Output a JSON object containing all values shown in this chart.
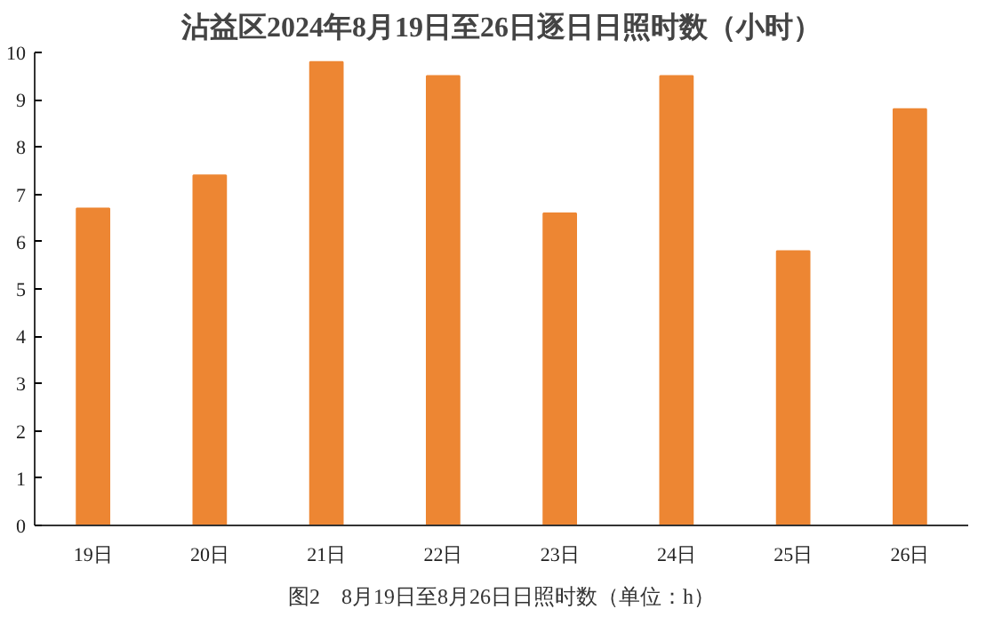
{
  "chart_data": {
    "type": "bar",
    "title": "沾益区2024年8月19日至26日逐日日照时数（小时）",
    "categories": [
      "19日",
      "20日",
      "21日",
      "22日",
      "23日",
      "24日",
      "25日",
      "26日"
    ],
    "values": [
      6.7,
      7.4,
      9.8,
      9.5,
      6.6,
      9.5,
      5.8,
      8.8
    ],
    "color": "#ed8633",
    "ylim": [
      0,
      10
    ],
    "yticks": [
      0,
      1,
      2,
      3,
      4,
      5,
      6,
      7,
      8,
      9,
      10
    ],
    "grid": false,
    "annotations": [
      "图2　8月19日至8月26日日照时数（单位：h）"
    ]
  }
}
